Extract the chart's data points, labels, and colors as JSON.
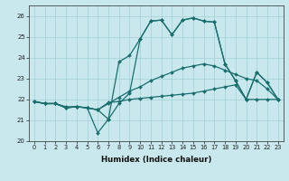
{
  "xlabel": "Humidex (Indice chaleur)",
  "xlim": [
    -0.5,
    23.5
  ],
  "ylim": [
    20,
    26.5
  ],
  "yticks": [
    20,
    21,
    22,
    23,
    24,
    25,
    26
  ],
  "xticks": [
    0,
    1,
    2,
    3,
    4,
    5,
    6,
    7,
    8,
    9,
    10,
    11,
    12,
    13,
    14,
    15,
    16,
    17,
    18,
    19,
    20,
    21,
    22,
    23
  ],
  "bg_color": "#c8e8ed",
  "grid_color": "#a8d4da",
  "line_color": "#1a6e6e",
  "series": [
    [
      21.9,
      21.8,
      21.8,
      21.6,
      21.65,
      21.6,
      21.5,
      21.85,
      21.9,
      22.0,
      22.05,
      22.1,
      22.15,
      22.2,
      22.25,
      22.3,
      22.4,
      22.5,
      22.6,
      22.7,
      22.0,
      22.0,
      22.0,
      22.0
    ],
    [
      21.9,
      21.8,
      21.8,
      21.65,
      21.65,
      21.6,
      21.5,
      21.8,
      22.1,
      22.4,
      22.6,
      22.9,
      23.1,
      23.3,
      23.5,
      23.6,
      23.7,
      23.6,
      23.4,
      23.2,
      23.0,
      22.9,
      22.5,
      22.0
    ],
    [
      21.9,
      21.8,
      21.8,
      21.6,
      21.65,
      21.6,
      20.4,
      21.05,
      21.8,
      22.3,
      24.9,
      25.75,
      25.8,
      25.1,
      25.8,
      25.9,
      25.75,
      25.7,
      23.7,
      22.9,
      22.0,
      23.3,
      22.8,
      22.0
    ],
    [
      21.9,
      21.8,
      21.8,
      21.6,
      21.65,
      21.6,
      21.5,
      21.05,
      23.8,
      24.1,
      24.9,
      25.75,
      25.8,
      25.1,
      25.8,
      25.9,
      25.75,
      25.7,
      23.7,
      22.9,
      22.0,
      23.3,
      22.8,
      22.0
    ]
  ]
}
